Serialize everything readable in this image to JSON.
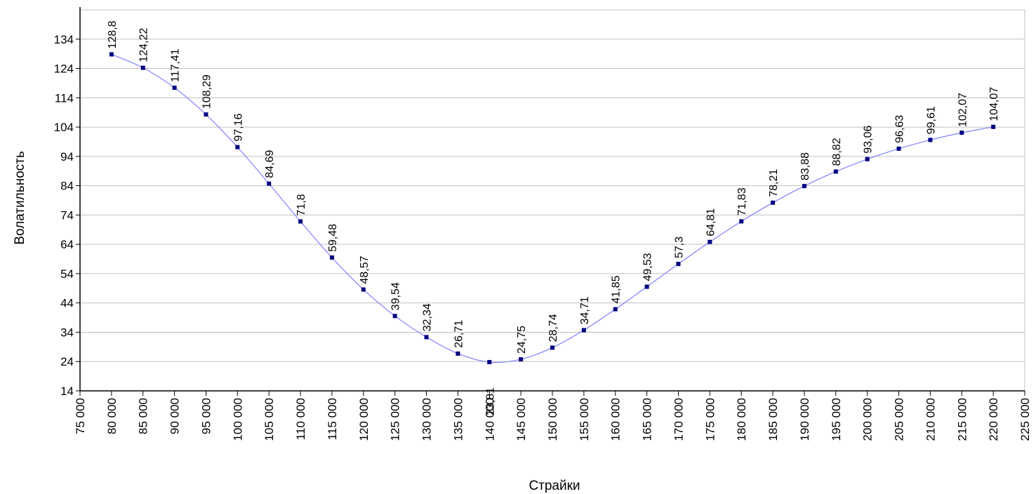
{
  "chart_data": {
    "type": "line",
    "title": "",
    "xlabel": "Страйки",
    "ylabel": "Волатильность",
    "xlim": [
      75000,
      225000
    ],
    "ylim": [
      14,
      144
    ],
    "grid": "horizontal",
    "x_tick_labels": [
      "75 000",
      "80 000",
      "85 000",
      "90 000",
      "95 000",
      "100 000",
      "105 000",
      "110 000",
      "115 000",
      "120 000",
      "125 000",
      "130 000",
      "135 000",
      "140 000",
      "145 000",
      "150 000",
      "155 000",
      "160 000",
      "165 000",
      "170 000",
      "175 000",
      "180 000",
      "185 000",
      "190 000",
      "195 000",
      "200 000",
      "205 000",
      "210 000",
      "215 000",
      "220 000",
      "225 000"
    ],
    "y_tick_labels": [
      "14",
      "24",
      "34",
      "44",
      "54",
      "64",
      "74",
      "84",
      "94",
      "104",
      "114",
      "124",
      "134"
    ],
    "series": [
      {
        "x": [
          80000,
          85000,
          90000,
          95000,
          100000,
          105000,
          110000,
          115000,
          120000,
          125000,
          130000,
          135000,
          140000,
          145000,
          150000,
          155000,
          160000,
          165000,
          170000,
          175000,
          180000,
          185000,
          190000,
          195000,
          200000,
          205000,
          210000,
          215000,
          220000
        ],
        "y": [
          128.8,
          124.22,
          117.41,
          108.29,
          97.16,
          84.69,
          71.8,
          59.48,
          48.57,
          39.54,
          32.34,
          26.71,
          23.81,
          24.75,
          28.74,
          34.71,
          41.85,
          49.53,
          57.3,
          64.81,
          71.83,
          78.21,
          83.88,
          88.82,
          93.06,
          96.63,
          99.61,
          102.07,
          104.07
        ],
        "data_labels": [
          "128,8",
          "124,22",
          "117,41",
          "108,29",
          "97,16",
          "84,69",
          "71,8",
          "59,48",
          "48,57",
          "39,54",
          "32,34",
          "26,71",
          "23,81",
          "24,75",
          "28,74",
          "34,71",
          "41,85",
          "49,53",
          "57,3",
          "64,81",
          "71,83",
          "78,21",
          "83,88",
          "88,82",
          "93,06",
          "96,63",
          "99,61",
          "102,07",
          "104,07"
        ]
      }
    ],
    "colors": {
      "line": "#8080ff",
      "marker": "#000080",
      "grid": "#c0c0c0",
      "axis": "#000000"
    }
  }
}
